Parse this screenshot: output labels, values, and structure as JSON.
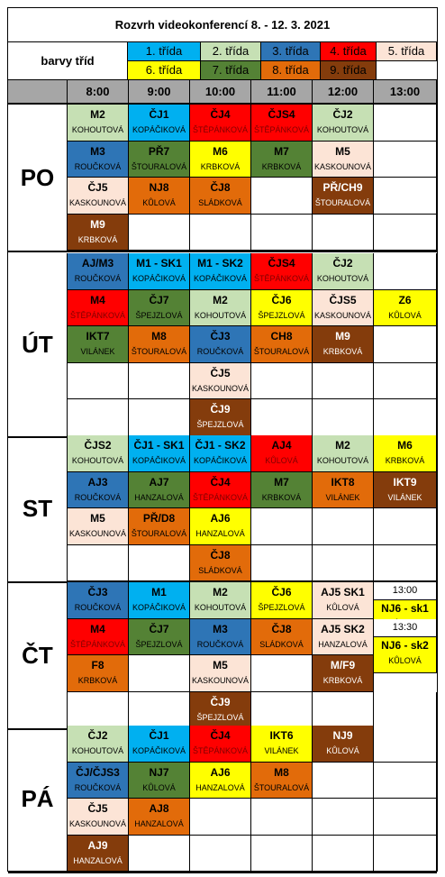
{
  "title": "Rozvrh videokonferencí 8. - 12. 3. 2021",
  "legend": {
    "label": "barvy tříd",
    "items": [
      {
        "label": "1. třída",
        "color": "#00b0f0"
      },
      {
        "label": "2. třída",
        "color": "#c6e0b4"
      },
      {
        "label": "3. třída",
        "color": "#2e75b6"
      },
      {
        "label": "4. třída",
        "color": "#ff0000"
      },
      {
        "label": "5. třída",
        "color": "#fce4d6"
      },
      {
        "label": "6. třída",
        "color": "#ffff00"
      },
      {
        "label": "7. třída",
        "color": "#548235"
      },
      {
        "label": "8. třída",
        "color": "#e26b0a"
      },
      {
        "label": "9. třída",
        "color": "#843c0c"
      }
    ]
  },
  "times": [
    "8:00",
    "9:00",
    "10:00",
    "11:00",
    "12:00",
    "13:00"
  ],
  "days": [
    {
      "label": "PO",
      "rows": [
        [
          {
            "s": "M2",
            "t": "KOHOUTOVÁ",
            "c": "#c6e0b4"
          },
          {
            "s": "ČJ1",
            "t": "KOPÁČIKOVÁ",
            "c": "#00b0f0"
          },
          {
            "s": "ČJ4",
            "t": "ŠTĚPÁNKOVÁ",
            "c": "#ff0000",
            "tc": "#7f0000"
          },
          {
            "s": "ČJS4",
            "t": "ŠTĚPÁNKOVÁ",
            "c": "#ff0000",
            "tc": "#7f0000"
          },
          {
            "s": "ČJ2",
            "t": "KOHOUTOVÁ",
            "c": "#c6e0b4"
          },
          null
        ],
        [
          {
            "s": "M3",
            "t": "ROUČKOVÁ",
            "c": "#2e75b6"
          },
          {
            "s": "PŘ7",
            "t": "ŠTOURALOVÁ",
            "c": "#548235"
          },
          {
            "s": "M6",
            "t": "KRBKOVÁ",
            "c": "#ffff00"
          },
          {
            "s": "M7",
            "t": "KRBKOVÁ",
            "c": "#548235"
          },
          {
            "s": "M5",
            "t": "KASKOUNOVÁ",
            "c": "#fce4d6"
          },
          null
        ],
        [
          {
            "s": "ČJ5",
            "t": "KASKOUNOVÁ",
            "c": "#fce4d6"
          },
          {
            "s": "NJ8",
            "t": "KŮLOVÁ",
            "c": "#e26b0a"
          },
          {
            "s": "ČJ8",
            "t": "SLÁDKOVÁ",
            "c": "#e26b0a"
          },
          null,
          {
            "s": "PŘ/CH9",
            "t": "ŠTOURALOVÁ",
            "c": "#843c0c",
            "sc": "#ffffff",
            "tc": "#ffffff"
          },
          null
        ],
        [
          {
            "s": "M9",
            "t": "KRBKOVÁ",
            "c": "#843c0c",
            "sc": "#ffffff",
            "tc": "#ffffff"
          },
          null,
          null,
          null,
          null,
          null
        ]
      ]
    },
    {
      "label": "ÚT",
      "rows": [
        [
          {
            "s": "AJ/M3",
            "t": "ROUČKOVÁ",
            "c": "#2e75b6"
          },
          {
            "s": "M1 - SK1",
            "t": "KOPÁČIKOVÁ",
            "c": "#00b0f0"
          },
          {
            "s": "M1 - SK2",
            "t": "KOPÁČIKOVÁ",
            "c": "#00b0f0"
          },
          {
            "s": "ČJS4",
            "t": "ŠTĚPÁNKOVÁ",
            "c": "#ff0000",
            "tc": "#7f0000"
          },
          {
            "s": "ČJ2",
            "t": "KOHOUTOVÁ",
            "c": "#c6e0b4"
          },
          null
        ],
        [
          {
            "s": "M4",
            "t": "ŠTĚPÁNKOVÁ",
            "c": "#ff0000",
            "tc": "#7f0000"
          },
          {
            "s": "ČJ7",
            "t": "ŠPEJZLOVÁ",
            "c": "#548235"
          },
          {
            "s": "M2",
            "t": "KOHOUTOVÁ",
            "c": "#c6e0b4"
          },
          {
            "s": "ČJ6",
            "t": "ŠPEJZLOVÁ",
            "c": "#ffff00"
          },
          {
            "s": "ČJS5",
            "t": "KASKOUNOVÁ",
            "c": "#fce4d6"
          },
          {
            "s": "Z6",
            "t": "KŮLOVÁ",
            "c": "#ffff00"
          }
        ],
        [
          {
            "s": "IKT7",
            "t": "VILÁNEK",
            "c": "#548235"
          },
          {
            "s": "M8",
            "t": "ŠTOURALOVÁ",
            "c": "#e26b0a"
          },
          {
            "s": "ČJ3",
            "t": "ROUČKOVÁ",
            "c": "#2e75b6"
          },
          {
            "s": "CH8",
            "t": "ŠTOURALOVÁ",
            "c": "#e26b0a"
          },
          {
            "s": "M9",
            "t": "KRBKOVÁ",
            "c": "#843c0c",
            "sc": "#ffffff",
            "tc": "#ffffff"
          },
          null
        ],
        [
          null,
          null,
          {
            "s": "ČJ5",
            "t": "KASKOUNOVÁ",
            "c": "#fce4d6"
          },
          null,
          null,
          null
        ],
        [
          null,
          null,
          {
            "s": "ČJ9",
            "t": "ŠPEJZLOVÁ",
            "c": "#843c0c",
            "sc": "#ffffff",
            "tc": "#ffffff"
          },
          null,
          null,
          null
        ]
      ]
    },
    {
      "label": "ST",
      "rows": [
        [
          {
            "s": "ČJS2",
            "t": "KOHOUTOVÁ",
            "c": "#c6e0b4"
          },
          {
            "s": "ČJ1 - SK1",
            "t": "KOPÁČIKOVÁ",
            "c": "#00b0f0"
          },
          {
            "s": "ČJ1 - SK2",
            "t": "KOPÁČIKOVÁ",
            "c": "#00b0f0"
          },
          {
            "s": "AJ4",
            "t": "KŮLOVÁ",
            "c": "#ff0000",
            "tc": "#7f0000"
          },
          {
            "s": "M2",
            "t": "KOHOUTOVÁ",
            "c": "#c6e0b4"
          },
          {
            "s": "M6",
            "t": "KRBKOVÁ",
            "c": "#ffff00"
          }
        ],
        [
          {
            "s": "AJ3",
            "t": "ROUČKOVÁ",
            "c": "#2e75b6"
          },
          {
            "s": "AJ7",
            "t": "HANZALOVÁ",
            "c": "#548235"
          },
          {
            "s": "ČJ4",
            "t": "ŠTĚPÁNKOVÁ",
            "c": "#ff0000",
            "tc": "#7f0000"
          },
          {
            "s": "M7",
            "t": "KRBKOVÁ",
            "c": "#548235"
          },
          {
            "s": "IKT8",
            "t": "VILÁNEK",
            "c": "#e26b0a"
          },
          {
            "s": "IKT9",
            "t": "VILÁNEK",
            "c": "#843c0c",
            "sc": "#ffffff",
            "tc": "#ffffff"
          }
        ],
        [
          {
            "s": "M5",
            "t": "KASKOUNOVÁ",
            "c": "#fce4d6"
          },
          {
            "s": "PŘ/D8",
            "t": "ŠTOURALOVÁ",
            "c": "#e26b0a"
          },
          {
            "s": "AJ6",
            "t": "HANZALOVÁ",
            "c": "#ffff00"
          },
          null,
          null,
          null
        ],
        [
          null,
          null,
          {
            "s": "ČJ8",
            "t": "SLÁDKOVÁ",
            "c": "#e26b0a"
          },
          null,
          null,
          null
        ]
      ]
    },
    {
      "label": "ČT",
      "rows": [
        [
          {
            "s": "ČJ3",
            "t": "ROUČKOVÁ",
            "c": "#2e75b6"
          },
          {
            "s": "M1",
            "t": "KOPÁČIKOVÁ",
            "c": "#00b0f0"
          },
          {
            "s": "M2",
            "t": "KOHOUTOVÁ",
            "c": "#c6e0b4"
          },
          {
            "s": "ČJ6",
            "t": "ŠPEJZLOVÁ",
            "c": "#ffff00"
          },
          {
            "s": "AJ5 SK1",
            "t": "KŮLOVÁ",
            "c": "#fce4d6"
          },
          {
            "split": true,
            "time": "13:00",
            "s": "NJ6 - sk1",
            "t": "KŮLOVÁ",
            "c": "#ffff00"
          }
        ],
        [
          {
            "s": "M4",
            "t": "ŠTĚPÁNKOVÁ",
            "c": "#ff0000",
            "tc": "#7f0000"
          },
          {
            "s": "ČJ7",
            "t": "ŠPEJZLOVÁ",
            "c": "#548235"
          },
          {
            "s": "M3",
            "t": "ROUČKOVÁ",
            "c": "#2e75b6"
          },
          {
            "s": "ČJ8",
            "t": "SLÁDKOVÁ",
            "c": "#e26b0a"
          },
          {
            "s": "AJ5 SK2",
            "t": "HANZALOVÁ",
            "c": "#fce4d6"
          },
          {
            "split": true,
            "time": "13:30",
            "s": "NJ6 - sk2",
            "t": "KŮLOVÁ",
            "c": "#ffff00"
          }
        ],
        [
          {
            "s": "F8",
            "t": "KRBKOVÁ",
            "c": "#e26b0a"
          },
          null,
          {
            "s": "M5",
            "t": "KASKOUNOVÁ",
            "c": "#fce4d6"
          },
          null,
          {
            "s": "M/F9",
            "t": "KRBKOVÁ",
            "c": "#843c0c",
            "sc": "#ffffff",
            "tc": "#ffffff"
          },
          "skip"
        ],
        [
          null,
          null,
          {
            "s": "ČJ9",
            "t": "ŠPEJZLOVÁ",
            "c": "#843c0c",
            "sc": "#ffffff",
            "tc": "#ffffff"
          },
          null,
          null,
          null
        ]
      ]
    },
    {
      "label": "PÁ",
      "rows": [
        [
          {
            "s": "ČJ2",
            "t": "KOHOUTOVÁ",
            "c": "#c6e0b4"
          },
          {
            "s": "ČJ1",
            "t": "KOPÁČIKOVÁ",
            "c": "#00b0f0"
          },
          {
            "s": "ČJ4",
            "t": "ŠTĚPÁNKOVÁ",
            "c": "#ff0000",
            "tc": "#7f0000"
          },
          {
            "s": "IKT6",
            "t": "VILÁNEK",
            "c": "#ffff00"
          },
          {
            "s": "NJ9",
            "t": "KŮLOVÁ",
            "c": "#843c0c",
            "sc": "#ffffff",
            "tc": "#ffffff"
          },
          null
        ],
        [
          {
            "s": "ČJ/ČJS3",
            "t": "ROUČKOVÁ",
            "c": "#2e75b6"
          },
          {
            "s": "NJ7",
            "t": "KŮLOVÁ",
            "c": "#548235"
          },
          {
            "s": "AJ6",
            "t": "HANZALOVÁ",
            "c": "#ffff00"
          },
          {
            "s": "M8",
            "t": "ŠTOURALOVÁ",
            "c": "#e26b0a"
          },
          null,
          null
        ],
        [
          {
            "s": "ČJ5",
            "t": "KASKOUNOVÁ",
            "c": "#fce4d6"
          },
          {
            "s": "AJ8",
            "t": "HANZALOVÁ",
            "c": "#e26b0a"
          },
          null,
          null,
          null,
          null
        ],
        [
          {
            "s": "AJ9",
            "t": "HANZALOVÁ",
            "c": "#843c0c",
            "sc": "#ffffff",
            "tc": "#ffffff"
          },
          null,
          null,
          null,
          null,
          null
        ]
      ]
    }
  ]
}
